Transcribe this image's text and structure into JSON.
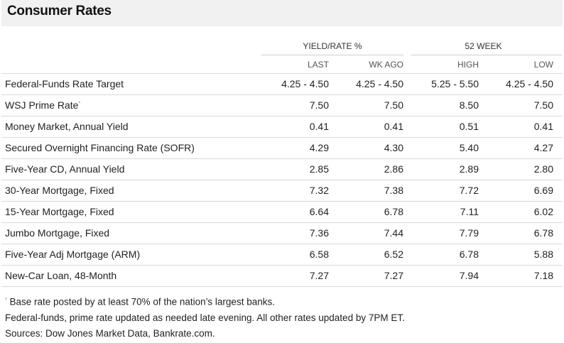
{
  "title": "Consumer Rates",
  "groups": {
    "yield_rate": "YIELD/RATE %",
    "week52": "52 WEEK"
  },
  "columns": [
    "LAST",
    "WK AGO",
    "HIGH",
    "LOW"
  ],
  "rows": [
    {
      "label": "Federal-Funds Rate Target",
      "sup": "",
      "last": "4.25 - 4.50",
      "wk_ago": "4.25 - 4.50",
      "high": "5.25 - 5.50",
      "low": "4.25 - 4.50"
    },
    {
      "label": "WSJ Prime Rate",
      "sup": "*",
      "last": "7.50",
      "wk_ago": "7.50",
      "high": "8.50",
      "low": "7.50"
    },
    {
      "label": "Money Market, Annual Yield",
      "sup": "",
      "last": "0.41",
      "wk_ago": "0.41",
      "high": "0.51",
      "low": "0.41"
    },
    {
      "label": "Secured Overnight Financing Rate (SOFR)",
      "sup": "",
      "last": "4.29",
      "wk_ago": "4.30",
      "high": "5.40",
      "low": "4.27"
    },
    {
      "label": "Five-Year CD, Annual Yield",
      "sup": "",
      "last": "2.85",
      "wk_ago": "2.86",
      "high": "2.89",
      "low": "2.80"
    },
    {
      "label": "30-Year Mortgage, Fixed",
      "sup": "",
      "last": "7.32",
      "wk_ago": "7.38",
      "high": "7.72",
      "low": "6.69"
    },
    {
      "label": "15-Year Mortgage, Fixed",
      "sup": "",
      "last": "6.64",
      "wk_ago": "6.78",
      "high": "7.11",
      "low": "6.02"
    },
    {
      "label": "Jumbo Mortgage, Fixed",
      "sup": "",
      "last": "7.36",
      "wk_ago": "7.44",
      "high": "7.79",
      "low": "6.78"
    },
    {
      "label": "Five-Year Adj Mortgage (ARM)",
      "sup": "",
      "last": "6.58",
      "wk_ago": "6.52",
      "high": "6.78",
      "low": "5.88"
    },
    {
      "label": "New-Car Loan, 48-Month",
      "sup": "",
      "last": "7.27",
      "wk_ago": "7.27",
      "high": "7.94",
      "low": "7.18"
    }
  ],
  "notes": {
    "footnote_mark": "*",
    "footnote": " Base rate posted by at least 70% of the nation’s largest banks.",
    "update_note": "Federal-funds, prime rate updated as needed late evening. All other rates updated by 7PM ET.",
    "sources": "Sources: Dow Jones Market Data, Bankrate.com."
  }
}
